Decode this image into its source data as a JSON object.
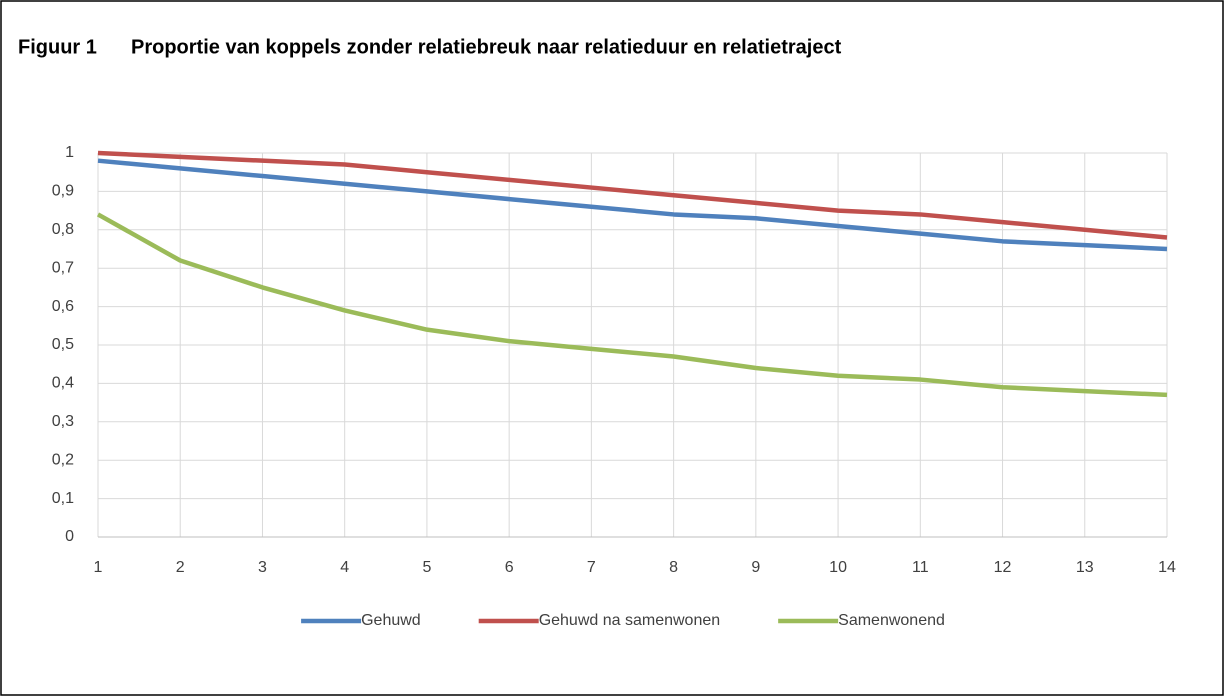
{
  "chart_data": {
    "type": "line",
    "figure_label": "Figuur 1",
    "title": "Proportie van koppels zonder relatiebreuk naar relatieduur en relatietraject",
    "x": [
      1,
      2,
      3,
      4,
      5,
      6,
      7,
      8,
      9,
      10,
      11,
      12,
      13,
      14
    ],
    "xlim": [
      1,
      14
    ],
    "xticks": [
      1,
      2,
      3,
      4,
      5,
      6,
      7,
      8,
      9,
      10,
      11,
      12,
      13,
      14
    ],
    "ylim": [
      0,
      1
    ],
    "yticks": [
      0,
      {
        "value": 0.1,
        "label": "0,1"
      },
      {
        "value": 0.2,
        "label": "0,2"
      },
      {
        "value": 0.3,
        "label": "0,3"
      },
      {
        "value": 0.4,
        "label": "0,4"
      },
      {
        "value": 0.5,
        "label": "0,5"
      },
      {
        "value": 0.6,
        "label": "0,6"
      },
      {
        "value": 0.7,
        "label": "0,7"
      },
      {
        "value": 0.8,
        "label": "0,8"
      },
      {
        "value": 0.9,
        "label": "0,9"
      },
      1
    ],
    "grid": true,
    "legend": "bottom",
    "series": [
      {
        "name": "Gehuwd",
        "color": "#4f81bd",
        "values": [
          0.98,
          0.96,
          0.94,
          0.92,
          0.9,
          0.88,
          0.86,
          0.84,
          0.83,
          0.81,
          0.79,
          0.77,
          0.76,
          0.75
        ]
      },
      {
        "name": "Gehuwd na samenwonen",
        "color": "#c0504d",
        "values": [
          1.0,
          0.99,
          0.98,
          0.97,
          0.95,
          0.93,
          0.91,
          0.89,
          0.87,
          0.85,
          0.84,
          0.82,
          0.8,
          0.78
        ]
      },
      {
        "name": "Samenwonend",
        "color": "#9bbb59",
        "values": [
          0.84,
          0.72,
          0.65,
          0.59,
          0.54,
          0.51,
          0.49,
          0.47,
          0.44,
          0.42,
          0.41,
          0.39,
          0.38,
          0.37
        ]
      }
    ]
  }
}
